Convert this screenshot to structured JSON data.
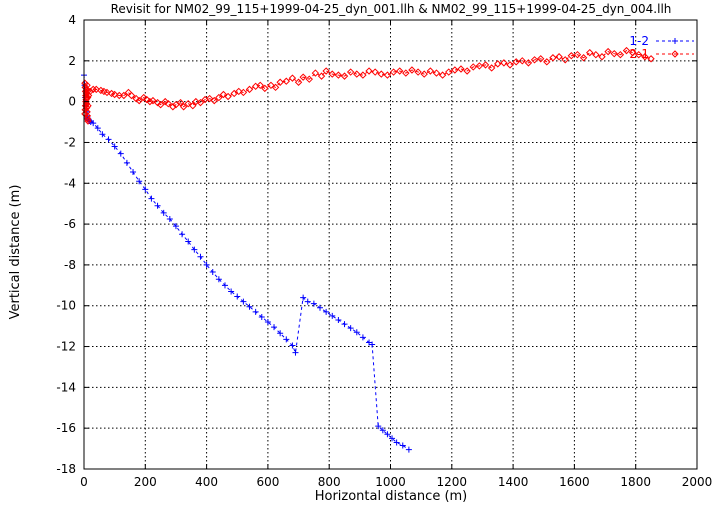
{
  "chart_data": {
    "type": "scatter",
    "title": "Revisit for NM02_99_115+1999-04-25_dyn_001.llh & NM02_99_115+1999-04-25_dyn_004.llh",
    "xlabel": "Horizontal distance (m)",
    "ylabel": "Vertical distance (m)",
    "xlim": [
      0,
      2000
    ],
    "ylim": [
      -18,
      4
    ],
    "x_ticks": [
      0,
      200,
      400,
      600,
      800,
      1000,
      1200,
      1400,
      1600,
      1800,
      2000
    ],
    "y_ticks": [
      -18,
      -16,
      -14,
      -12,
      -10,
      -8,
      -6,
      -4,
      -2,
      0,
      2,
      4
    ],
    "grid": true,
    "grid_style": "dashed",
    "legend_position": "top-right",
    "series": [
      {
        "name": "1-2",
        "color": "#0000ff",
        "marker": "plus",
        "line": "dashed",
        "x": [
          0,
          2,
          4,
          6,
          8,
          10,
          12,
          14,
          16,
          18,
          22,
          30,
          45,
          60,
          80,
          100,
          120,
          140,
          160,
          180,
          200,
          220,
          240,
          260,
          280,
          300,
          320,
          340,
          360,
          380,
          400,
          420,
          440,
          460,
          480,
          500,
          520,
          540,
          560,
          580,
          600,
          620,
          640,
          660,
          680,
          690,
          715,
          730,
          750,
          770,
          790,
          810,
          830,
          850,
          870,
          890,
          910,
          930,
          940,
          960,
          975,
          990,
          1005,
          1020,
          1040,
          1060
        ],
        "y": [
          1.3,
          0.8,
          0.2,
          -0.2,
          -0.5,
          -0.7,
          -0.8,
          -0.85,
          -0.9,
          -0.95,
          -1.0,
          -1.05,
          -1.3,
          -1.6,
          -1.85,
          -2.2,
          -2.55,
          -3.0,
          -3.45,
          -3.9,
          -4.3,
          -4.75,
          -5.1,
          -5.45,
          -5.75,
          -6.1,
          -6.5,
          -6.85,
          -7.25,
          -7.6,
          -8.0,
          -8.35,
          -8.7,
          -9.0,
          -9.3,
          -9.55,
          -9.8,
          -10.05,
          -10.3,
          -10.55,
          -10.8,
          -11.05,
          -11.35,
          -11.65,
          -11.95,
          -12.3,
          -9.6,
          -9.8,
          -9.9,
          -10.1,
          -10.3,
          -10.5,
          -10.7,
          -10.9,
          -11.1,
          -11.3,
          -11.55,
          -11.8,
          -11.9,
          -15.9,
          -16.1,
          -16.3,
          -16.5,
          -16.7,
          -16.85,
          -17.05
        ]
      },
      {
        "name": "2-1",
        "color": "#ff0000",
        "marker": "diamond",
        "line": "dashed",
        "x": [
          3,
          4,
          5,
          6,
          7,
          8,
          9,
          10,
          11,
          12,
          13,
          3,
          4,
          5,
          6,
          7,
          8,
          9,
          10,
          11,
          12,
          13,
          15,
          20,
          30,
          40,
          55,
          65,
          75,
          90,
          100,
          115,
          130,
          145,
          155,
          170,
          180,
          195,
          205,
          215,
          225,
          240,
          250,
          265,
          275,
          290,
          300,
          315,
          325,
          340,
          355,
          365,
          380,
          395,
          410,
          425,
          440,
          455,
          470,
          490,
          505,
          520,
          540,
          560,
          575,
          590,
          610,
          625,
          640,
          660,
          680,
          700,
          715,
          735,
          755,
          775,
          790,
          810,
          830,
          850,
          870,
          890,
          910,
          930,
          950,
          970,
          990,
          1010,
          1030,
          1050,
          1070,
          1090,
          1110,
          1130,
          1150,
          1170,
          1190,
          1210,
          1230,
          1250,
          1270,
          1290,
          1310,
          1330,
          1350,
          1370,
          1390,
          1410,
          1430,
          1450,
          1470,
          1490,
          1510,
          1530,
          1550,
          1570,
          1590,
          1610,
          1630,
          1650,
          1670,
          1690,
          1710,
          1730,
          1750,
          1770,
          1790,
          1810,
          1830,
          1850
        ],
        "y": [
          0.9,
          0.7,
          0.5,
          0.3,
          0.1,
          -0.1,
          -0.3,
          -0.5,
          -0.7,
          -0.85,
          -0.95,
          -0.6,
          -0.4,
          -0.2,
          0.0,
          0.2,
          0.4,
          0.6,
          0.8,
          0.5,
          0.2,
          -0.2,
          0.3,
          0.5,
          0.6,
          0.6,
          0.55,
          0.5,
          0.45,
          0.4,
          0.35,
          0.3,
          0.3,
          0.45,
          0.3,
          0.15,
          0.05,
          0.2,
          0.1,
          0.0,
          0.05,
          -0.05,
          -0.15,
          0.0,
          -0.1,
          -0.25,
          -0.15,
          -0.05,
          -0.25,
          -0.1,
          -0.2,
          0.0,
          -0.05,
          0.1,
          0.15,
          0.05,
          0.2,
          0.35,
          0.25,
          0.4,
          0.5,
          0.45,
          0.6,
          0.75,
          0.8,
          0.65,
          0.8,
          0.7,
          0.95,
          1.0,
          1.15,
          0.95,
          1.2,
          1.1,
          1.4,
          1.25,
          1.5,
          1.35,
          1.3,
          1.25,
          1.45,
          1.35,
          1.3,
          1.5,
          1.45,
          1.35,
          1.3,
          1.45,
          1.5,
          1.4,
          1.55,
          1.45,
          1.35,
          1.5,
          1.4,
          1.3,
          1.45,
          1.55,
          1.6,
          1.5,
          1.7,
          1.75,
          1.8,
          1.65,
          1.85,
          1.9,
          1.8,
          1.95,
          2.0,
          1.9,
          2.05,
          2.1,
          1.95,
          2.15,
          2.2,
          2.05,
          2.25,
          2.3,
          2.15,
          2.4,
          2.3,
          2.2,
          2.45,
          2.35,
          2.3,
          2.5,
          2.4,
          2.3,
          2.2,
          2.1
        ]
      }
    ]
  }
}
